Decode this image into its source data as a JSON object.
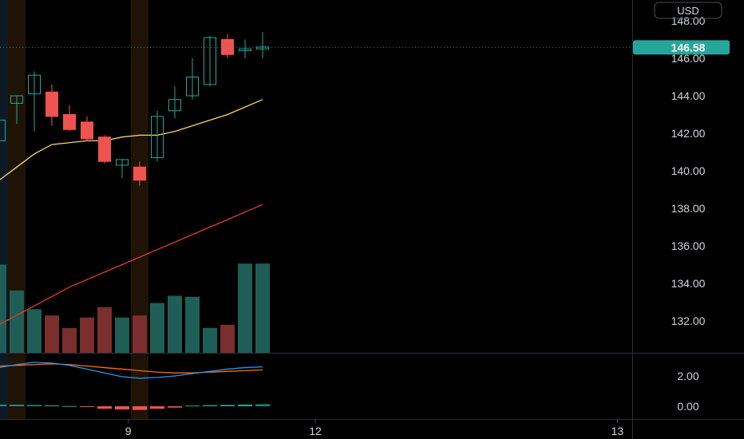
{
  "currency_label": "USD",
  "last_price_label": "146.58",
  "colors": {
    "background": "#000000",
    "up": "#26a69a",
    "down": "#ef5350",
    "vol_up": "#1e5e56",
    "vol_down": "#7a2e2e",
    "ma_fast": "#f5d76e",
    "ma_slow": "#e53935",
    "macd": "#2196f3",
    "signal": "#ff6d00",
    "highlight_blue": "#0d1a26",
    "highlight_orange": "#1f1306",
    "price_tag": "#26a69a",
    "axis_text": "#d1d4dc",
    "separator": "#2a2e39"
  },
  "chart_data": [
    {
      "type": "candlestick",
      "y_ticks": [
        "148.00",
        "146.00",
        "144.00",
        "142.00",
        "140.00",
        "138.00",
        "136.00",
        "134.00",
        "132.00"
      ],
      "y_tick_values": [
        148,
        146,
        144,
        142,
        140,
        138,
        136,
        134,
        132
      ],
      "x_tick_labels": [
        {
          "label": "9",
          "index": 7.35
        },
        {
          "label": "12",
          "index": 18.0
        },
        {
          "label": "13",
          "index": 35.2
        }
      ],
      "last_price": 146.58,
      "candles": [
        {
          "open": 141.6,
          "high": 143.0,
          "low": 141.4,
          "close": 142.7
        },
        {
          "open": 143.6,
          "high": 144.0,
          "low": 142.5,
          "close": 144.0
        },
        {
          "open": 144.1,
          "high": 145.3,
          "low": 142.1,
          "close": 145.1
        },
        {
          "open": 144.2,
          "high": 144.6,
          "low": 142.4,
          "close": 142.9
        },
        {
          "open": 143.0,
          "high": 143.5,
          "low": 142.1,
          "close": 142.2
        },
        {
          "open": 142.6,
          "high": 142.9,
          "low": 141.6,
          "close": 141.7
        },
        {
          "open": 141.8,
          "high": 141.9,
          "low": 140.4,
          "close": 140.5
        },
        {
          "open": 140.3,
          "high": 140.6,
          "low": 139.6,
          "close": 140.6
        },
        {
          "open": 140.2,
          "high": 140.5,
          "low": 139.2,
          "close": 139.5
        },
        {
          "open": 140.7,
          "high": 143.2,
          "low": 140.5,
          "close": 142.9
        },
        {
          "open": 143.2,
          "high": 144.5,
          "low": 142.8,
          "close": 143.8
        },
        {
          "open": 144.0,
          "high": 146.0,
          "low": 143.8,
          "close": 145.0
        },
        {
          "open": 144.6,
          "high": 147.2,
          "low": 144.5,
          "close": 147.1
        },
        {
          "open": 147.0,
          "high": 147.3,
          "low": 146.0,
          "close": 146.2
        },
        {
          "open": 146.4,
          "high": 147.0,
          "low": 146.0,
          "close": 146.5
        },
        {
          "open": 146.5,
          "high": 147.4,
          "low": 146.0,
          "close": 146.6
        }
      ],
      "ma_fast": [
        139.5,
        140.2,
        140.9,
        141.4,
        141.5,
        141.6,
        141.6,
        141.8,
        141.9,
        141.9,
        142.1,
        142.4,
        142.7,
        143.0,
        143.4,
        143.8
      ],
      "ma_slow": [
        131.8,
        132.3,
        132.8,
        133.3,
        133.8,
        134.2,
        134.6,
        135.0,
        135.4,
        135.8,
        136.2,
        136.6,
        137.0,
        137.4,
        137.8,
        138.2
      ],
      "volume": [
        0.85,
        0.6,
        0.42,
        0.36,
        0.24,
        0.34,
        0.44,
        0.34,
        0.36,
        0.48,
        0.55,
        0.54,
        0.24,
        0.27,
        0.86,
        0.86
      ],
      "highlights": [
        {
          "index": 0,
          "color": "highlight_blue"
        },
        {
          "index": 1,
          "color": "highlight_orange"
        },
        {
          "index": 8,
          "color": "highlight_orange"
        }
      ]
    },
    {
      "type": "indicator",
      "y_ticks": [
        "2.00",
        "0.00"
      ],
      "y_tick_values": [
        2,
        0
      ],
      "macd": [
        2.55,
        2.75,
        2.9,
        2.85,
        2.7,
        2.45,
        2.2,
        1.95,
        1.85,
        1.9,
        2.0,
        2.15,
        2.3,
        2.45,
        2.55,
        2.6
      ],
      "signal": [
        2.65,
        2.7,
        2.75,
        2.8,
        2.75,
        2.65,
        2.55,
        2.45,
        2.35,
        2.25,
        2.2,
        2.2,
        2.25,
        2.3,
        2.35,
        2.4
      ],
      "histogram": [
        0.15,
        0.15,
        0.12,
        0.08,
        0.02,
        -0.05,
        -0.22,
        -0.28,
        -0.33,
        -0.22,
        -0.12,
        0.06,
        0.1,
        0.12,
        0.15,
        0.18
      ]
    }
  ]
}
